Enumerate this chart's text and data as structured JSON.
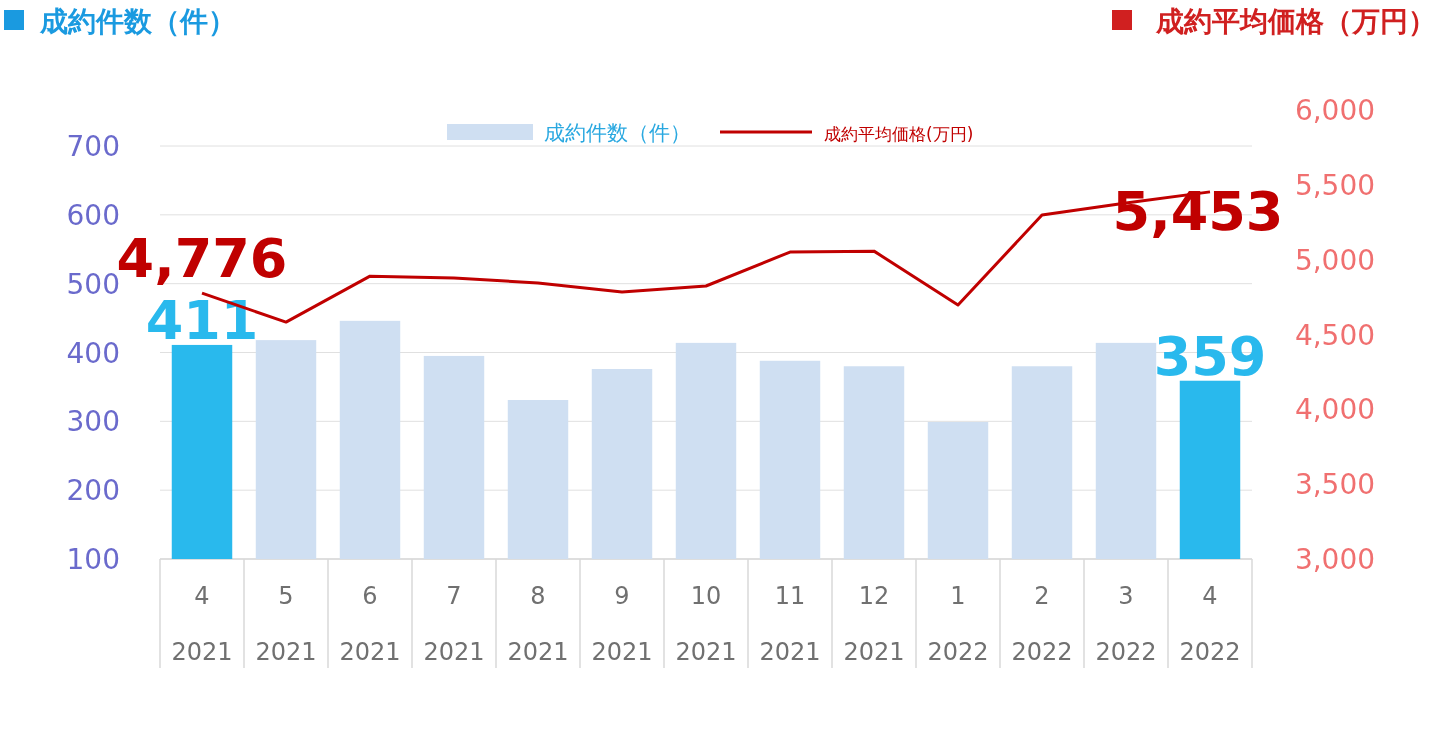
{
  "chart_data": {
    "type": "bar",
    "ylabel": "成約件数（件）",
    "y2label": "成約平均価格（万円）",
    "categories": [
      "4\n2021",
      "5\n2021",
      "6\n2021",
      "7\n2021",
      "8\n2021",
      "9\n2021",
      "10\n2021",
      "11\n2021",
      "12\n2021",
      "1\n2022",
      "2\n2022",
      "3\n2022",
      "4\n2022"
    ],
    "series": [
      {
        "name": "成約件数（件）",
        "color": "#cfdff2",
        "colors": [
          "#29b9ed",
          "#cfdff2",
          "#cfdff2",
          "#cfdff2",
          "#cfdff2",
          "#cfdff2",
          "#cfdff2",
          "#cfdff2",
          "#cfdff2",
          "#cfdff2",
          "#cfdff2",
          "#cfdff2",
          "#29b9ed"
        ],
        "values": [
          411,
          418,
          446,
          395,
          331,
          376,
          414,
          388,
          380,
          299,
          380,
          414,
          359
        ],
        "value_labels": [
          "411",
          null,
          null,
          null,
          null,
          null,
          null,
          null,
          null,
          null,
          null,
          null,
          "359"
        ]
      },
      {
        "name": "成約平均価格(万円)",
        "type": "line",
        "axis": "y2",
        "color": "#c00000",
        "values": [
          4776,
          4583,
          4890,
          4877,
          4844,
          4784,
          4824,
          5051,
          5057,
          4697,
          5298,
          5378,
          5453
        ],
        "value_labels": [
          "4,776",
          null,
          null,
          null,
          null,
          null,
          null,
          null,
          null,
          null,
          null,
          null,
          "5,453"
        ]
      }
    ],
    "ylim": [
      100,
      700
    ],
    "yticks": [
      100,
      200,
      300,
      400,
      500,
      600,
      700
    ],
    "y2lim": [
      3000,
      6000
    ],
    "y2ticks": [
      {
        "value": 3000,
        "label": "3,000"
      },
      {
        "value": 3500,
        "label": "3,500"
      },
      {
        "value": 4000,
        "label": "4,000"
      },
      {
        "value": 4500,
        "label": "4,500"
      },
      {
        "value": 5000,
        "label": "5,000"
      },
      {
        "value": 5500,
        "label": "5,500"
      },
      {
        "value": 6000,
        "label": "6,000"
      }
    ],
    "grid": "y",
    "legend": "top",
    "marker": "none",
    "line_style": "solid"
  }
}
